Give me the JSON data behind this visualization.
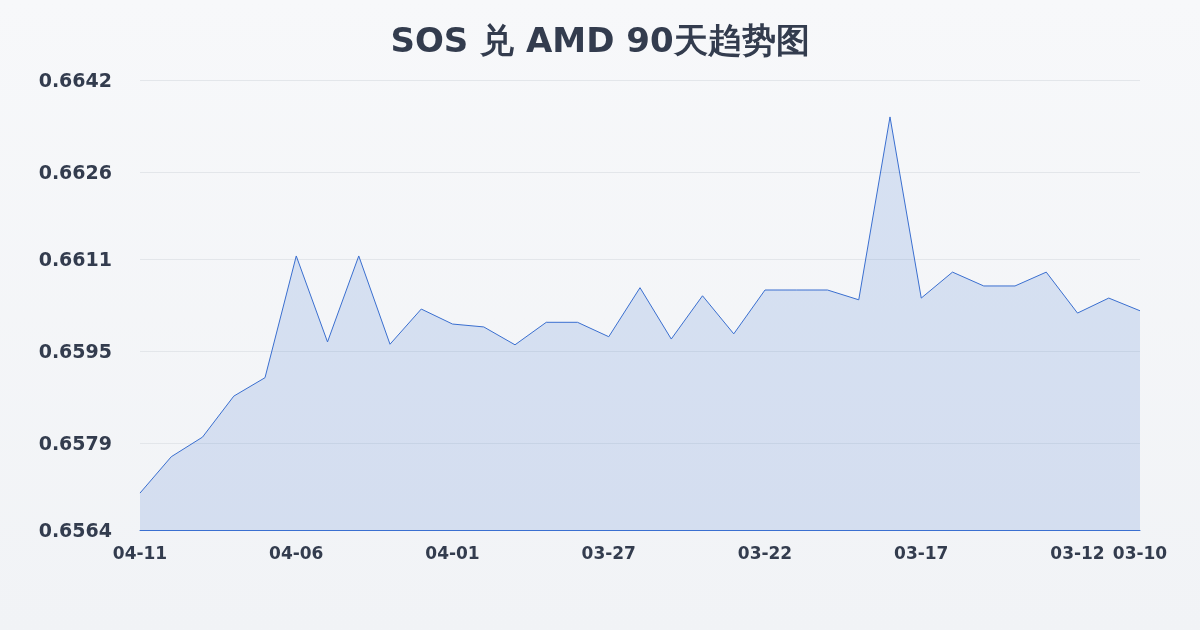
{
  "chart_data": {
    "type": "area",
    "title": "SOS 兑 AMD 90天趋势图",
    "categories": [
      "04-11",
      null,
      null,
      null,
      null,
      "04-06",
      null,
      null,
      null,
      null,
      "04-01",
      null,
      null,
      null,
      null,
      "03-27",
      null,
      null,
      null,
      null,
      "03-22",
      null,
      null,
      null,
      null,
      "03-17",
      null,
      null,
      null,
      null,
      "03-12",
      null,
      "03-10"
    ],
    "values": [
      0.65704,
      0.65767,
      0.65801,
      0.65872,
      0.65904,
      0.66115,
      0.65966,
      0.66115,
      0.65962,
      0.66023,
      0.65997,
      0.65992,
      0.65961,
      0.66,
      0.66,
      0.65975,
      0.6606,
      0.65971,
      0.66046,
      0.6598,
      0.66056,
      0.66056,
      0.66056,
      0.66039,
      0.66356,
      0.66042,
      0.66087,
      0.66063,
      0.66063,
      0.66087,
      0.66016,
      0.66042,
      0.6602
    ],
    "color": "#3a6fd0",
    "ylim": [
      0.6564,
      0.6642
    ],
    "yticks": [
      0.6564,
      0.6579,
      0.6595,
      0.6611,
      0.6626,
      0.6642
    ],
    "grid": "y",
    "marker": "none"
  }
}
